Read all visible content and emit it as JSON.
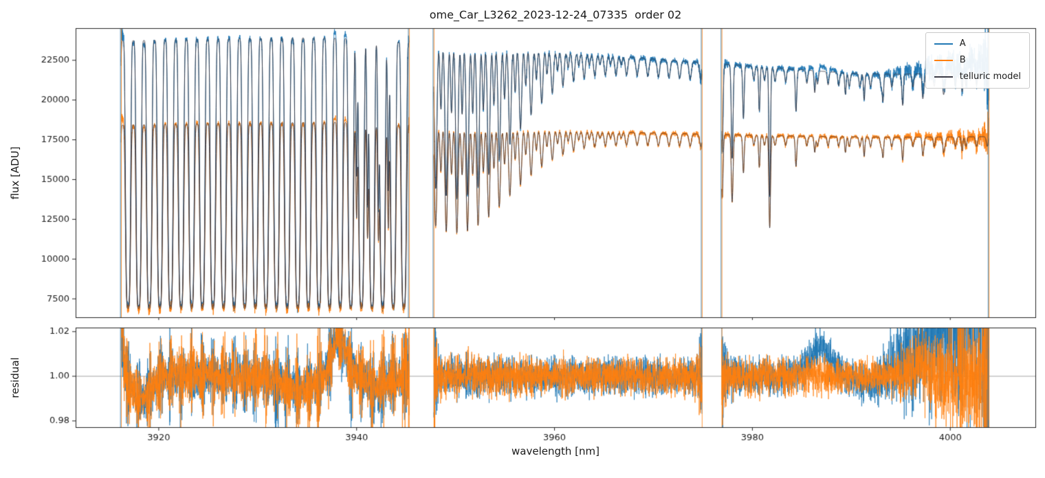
{
  "chart_data": {
    "type": "line",
    "title": "ome_Car_L3262_2023-12-24_07335  order 02",
    "xlabel": "wavelength [nm]",
    "xlim": [
      3911.6,
      4008.6
    ],
    "xticks": [
      3920,
      3940,
      3960,
      3980,
      4000
    ],
    "grid": false,
    "legend_position": "upper right",
    "panels": [
      {
        "name": "flux",
        "ylabel": "flux [ADU]",
        "ylim": [
          6340,
          24520
        ],
        "yticks": [
          7500,
          10000,
          12500,
          15000,
          17500,
          20000,
          22500
        ]
      },
      {
        "name": "residual",
        "ylabel": "residual",
        "ylim": [
          0.9772,
          1.0218
        ],
        "yticks": [
          0.98,
          1.0,
          1.02
        ],
        "hline": 1.0
      }
    ],
    "series": [
      {
        "name": "A",
        "color": "#1f77b4"
      },
      {
        "name": "B",
        "color": "#ff7f0e"
      },
      {
        "name": "telluric model",
        "color": "#3b3b46"
      }
    ],
    "segments": [
      [
        3916.2,
        3945.3
      ],
      [
        3947.8,
        3974.9
      ],
      [
        3976.9,
        4003.9
      ]
    ],
    "flux_floor": 6600,
    "telluric_comb": {
      "first_center": 3916.9,
      "period": 1.072
    },
    "continuum_A": [
      [
        3912,
        23700
      ],
      [
        3916,
        23720
      ],
      [
        3922,
        23800
      ],
      [
        3930,
        23880
      ],
      [
        3937,
        23920
      ],
      [
        3940,
        23820
      ],
      [
        3945,
        23620
      ],
      [
        3950,
        23430
      ],
      [
        3955,
        23270
      ],
      [
        3960,
        23080
      ],
      [
        3965,
        22830
      ],
      [
        3970,
        22580
      ],
      [
        3975,
        22360
      ],
      [
        3980,
        22130
      ],
      [
        3985,
        21900
      ],
      [
        3990,
        21680
      ],
      [
        3995,
        21620
      ],
      [
        4000,
        21700
      ],
      [
        4005,
        21800
      ]
    ],
    "continuum_B": [
      [
        3912,
        18380
      ],
      [
        3916,
        18420
      ],
      [
        3925,
        18530
      ],
      [
        3933,
        18580
      ],
      [
        3938,
        18600
      ],
      [
        3942,
        18500
      ],
      [
        3947,
        18380
      ],
      [
        3952,
        18260
      ],
      [
        3958,
        18130
      ],
      [
        3964,
        18020
      ],
      [
        3970,
        17930
      ],
      [
        3976,
        17840
      ],
      [
        3982,
        17760
      ],
      [
        3988,
        17700
      ],
      [
        3994,
        17660
      ],
      [
        4000,
        17680
      ],
      [
        4005,
        17700
      ]
    ],
    "extra_lines": [
      {
        "c": 3940.0,
        "d": 0.5,
        "w": 0.1
      },
      {
        "c": 3941.1,
        "d": 0.6,
        "w": 0.1
      },
      {
        "c": 3942.2,
        "d": 0.6,
        "w": 0.1
      },
      {
        "c": 3943.2,
        "d": 0.55,
        "w": 0.1
      },
      {
        "c": 3976.95,
        "d": 0.3,
        "w": 0.12
      },
      {
        "c": 3977.95,
        "d": 0.33,
        "w": 0.12
      },
      {
        "c": 3979.1,
        "d": 0.16,
        "w": 0.1
      },
      {
        "c": 3980.7,
        "d": 0.18,
        "w": 0.1
      },
      {
        "c": 3981.75,
        "d": 0.52,
        "w": 0.11
      },
      {
        "c": 3984.4,
        "d": 0.12,
        "w": 0.1
      },
      {
        "c": 3986.3,
        "d": 0.09,
        "w": 0.1
      },
      {
        "c": 3989.4,
        "d": 0.09,
        "w": 0.1
      },
      {
        "c": 3991.3,
        "d": 0.11,
        "w": 0.1
      },
      {
        "c": 3993.2,
        "d": 0.11,
        "w": 0.1
      },
      {
        "c": 3995.2,
        "d": 0.08,
        "w": 0.1
      },
      {
        "c": 3997.2,
        "d": 0.07,
        "w": 0.1
      },
      {
        "c": 3999.3,
        "d": 0.07,
        "w": 0.1
      },
      {
        "c": 4001.2,
        "d": 0.08,
        "w": 0.1
      }
    ],
    "residual_structure": {
      "shared": [
        [
          3915.9,
          0.45,
          0.05
        ],
        [
          3918.3,
          1.4,
          -0.01
        ],
        [
          3934.0,
          2.3,
          -0.0065
        ],
        [
          3938.2,
          0.95,
          0.018
        ],
        [
          3942.0,
          1.3,
          -0.005
        ]
      ],
      "A": [
        [
          3986.8,
          1.6,
          0.012
        ],
        [
          3991.8,
          1.7,
          -0.006
        ]
      ],
      "B": [
        [
          3996.8,
          1.2,
          0.005
        ]
      ],
      "A_end_rise": {
        "x0": 3999,
        "w": 2.5,
        "amp": 0.04
      }
    },
    "noise": {
      "base": 0.004,
      "edge_boost": 3.0,
      "edge_scale": 0.22,
      "A_end": {
        "x0": 3992,
        "rate": 0.5
      },
      "B_end": {
        "x0": 3994,
        "rate": 0.31
      },
      "core_spike_adu": 260
    }
  }
}
